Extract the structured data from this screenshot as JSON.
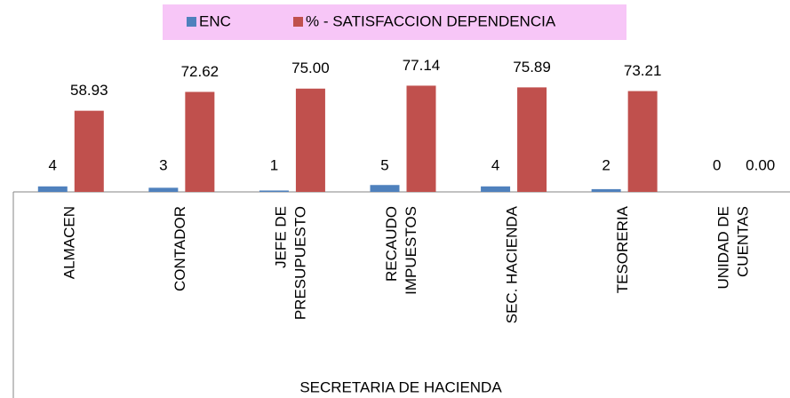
{
  "chart_data": {
    "type": "bar",
    "categories": [
      "ALMACEN",
      "CONTADOR",
      "JEFE DE\nPRESUPUESTO",
      "RECAUDO\nIMPUESTOS",
      "SEC. HACIENDA",
      "TESORERIA",
      "UNIDAD DE\nCUENTAS"
    ],
    "series": [
      {
        "name": "ENC",
        "color": "#4f81bd",
        "values": [
          4,
          3,
          1,
          5,
          4,
          2,
          0
        ]
      },
      {
        "name": "% - SATISFACCION DEPENDENCIA",
        "color": "#c0504d",
        "values": [
          58.93,
          72.62,
          75,
          77.14,
          75.89,
          73.21,
          0
        ],
        "value_labels": [
          "58.93",
          "72.62",
          "75.00",
          "77.14",
          "75.89",
          "73.21",
          "0.00"
        ]
      }
    ],
    "xlabel": "SECRETARIA  DE HACIENDA",
    "ylim": [
      0,
      100
    ]
  }
}
